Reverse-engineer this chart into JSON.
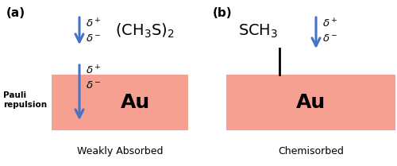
{
  "fig_width": 5.0,
  "fig_height": 2.09,
  "dpi": 100,
  "bg_color": "#ffffff",
  "au_color": "#F5A090",
  "arrow_color": "#4472C4",
  "panel_a_label": "(a)",
  "panel_b_label": "(b)",
  "molecule_a": "(CH$_3$S)$_2$",
  "molecule_b": "SCH$_3$",
  "au_label": "Au",
  "bottom_label_a": "Weakly Absorbed",
  "bottom_label_b": "Chemisorbed",
  "pauli_label": "Pauli\nrepulsion",
  "delta_plus": "$\\delta^+$",
  "delta_minus": "$\\delta^-$"
}
